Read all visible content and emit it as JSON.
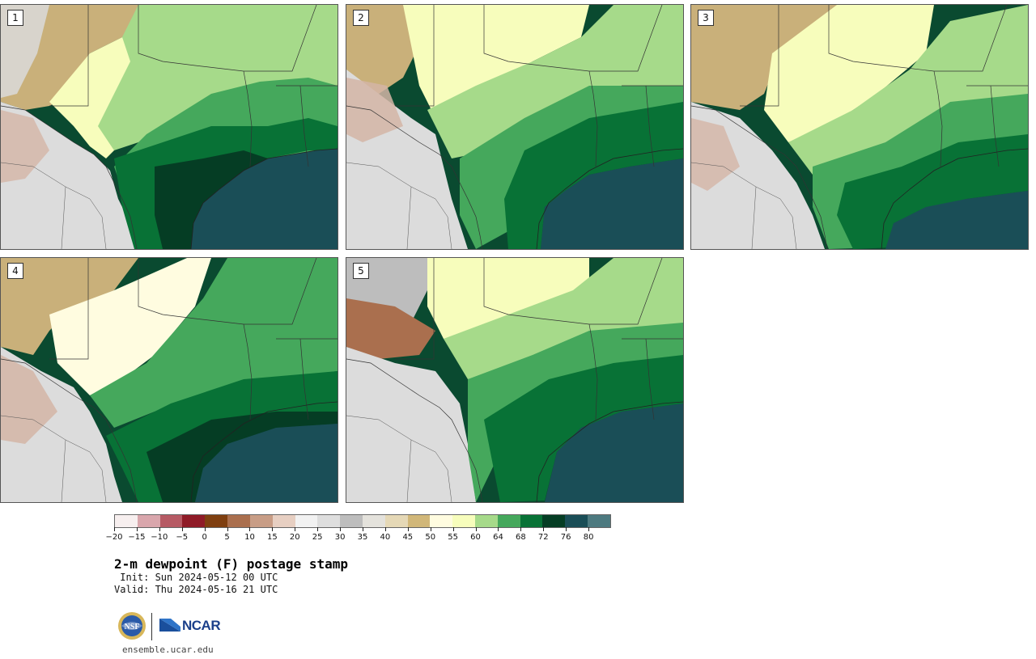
{
  "panels": [
    {
      "label": "1"
    },
    {
      "label": "2"
    },
    {
      "label": "3"
    },
    {
      "label": "4"
    },
    {
      "label": "5"
    }
  ],
  "colorbar": {
    "colors": [
      "#f7efef",
      "#d9a6ac",
      "#b65a64",
      "#8f1b27",
      "#7f3f10",
      "#aa6f4e",
      "#c89d86",
      "#e7cfc2",
      "#f2f2f2",
      "#dedede",
      "#bdbdbd",
      "#e4e2dc",
      "#e5d8b6",
      "#d1b779",
      "#fffce0",
      "#f7fdbc",
      "#a6da8a",
      "#45a85c",
      "#087236",
      "#053d24",
      "#1a4e57",
      "#4d7a80"
    ],
    "ticks": [
      "−20",
      "−15",
      "−10",
      "−5",
      "0",
      "5",
      "10",
      "15",
      "20",
      "25",
      "30",
      "35",
      "40",
      "45",
      "50",
      "55",
      "60",
      "64",
      "68",
      "72",
      "76",
      "80"
    ]
  },
  "title": "2-m dewpoint (F) postage stamp",
  "init": " Init: Sun 2024-05-12 00 UTC",
  "valid": "Valid: Thu 2024-05-16 21 UTC",
  "logos": {
    "nsf": "NSF",
    "ncar": "NCAR"
  },
  "website": "ensemble.ucar.edu"
}
